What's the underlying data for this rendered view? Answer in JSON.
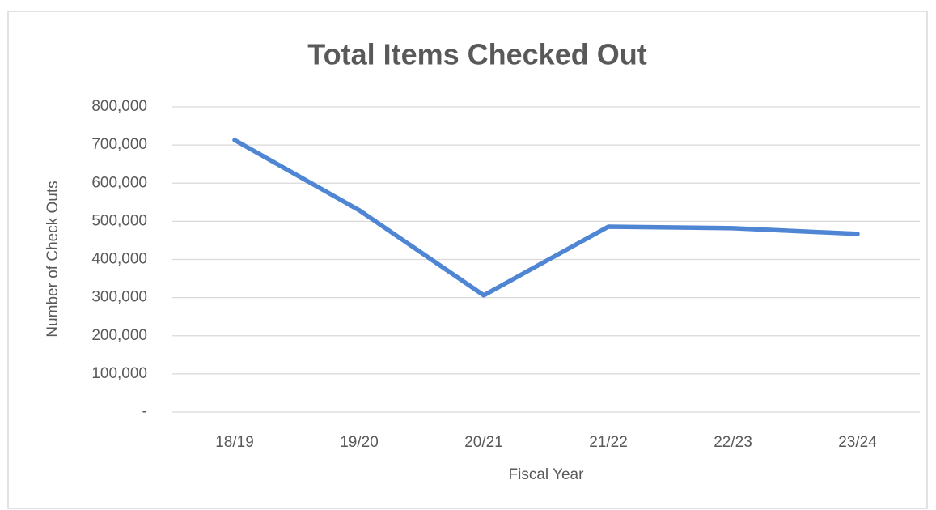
{
  "chart_data": {
    "type": "line",
    "title": "Total Items Checked Out",
    "x_label": "Fiscal Year",
    "y_label": "Number of Check Outs",
    "categories": [
      "18/19",
      "19/20",
      "20/21",
      "21/22",
      "22/23",
      "23/24"
    ],
    "series": [
      {
        "name": "Total Items Checked Out",
        "color": "#4f86d4",
        "values": [
          713000,
          529000,
          306000,
          486000,
          482000,
          467000
        ]
      }
    ],
    "ylim": [
      0,
      800000
    ],
    "yticks": [
      {
        "value": 0,
        "label": "-"
      },
      {
        "value": 100000,
        "label": "100,000"
      },
      {
        "value": 200000,
        "label": "200,000"
      },
      {
        "value": 300000,
        "label": "300,000"
      },
      {
        "value": 400000,
        "label": "400,000"
      },
      {
        "value": 500000,
        "label": "500,000"
      },
      {
        "value": 600000,
        "label": "600,000"
      },
      {
        "value": 700000,
        "label": "700,000"
      },
      {
        "value": 800000,
        "label": "800,000"
      }
    ],
    "grid": true
  }
}
